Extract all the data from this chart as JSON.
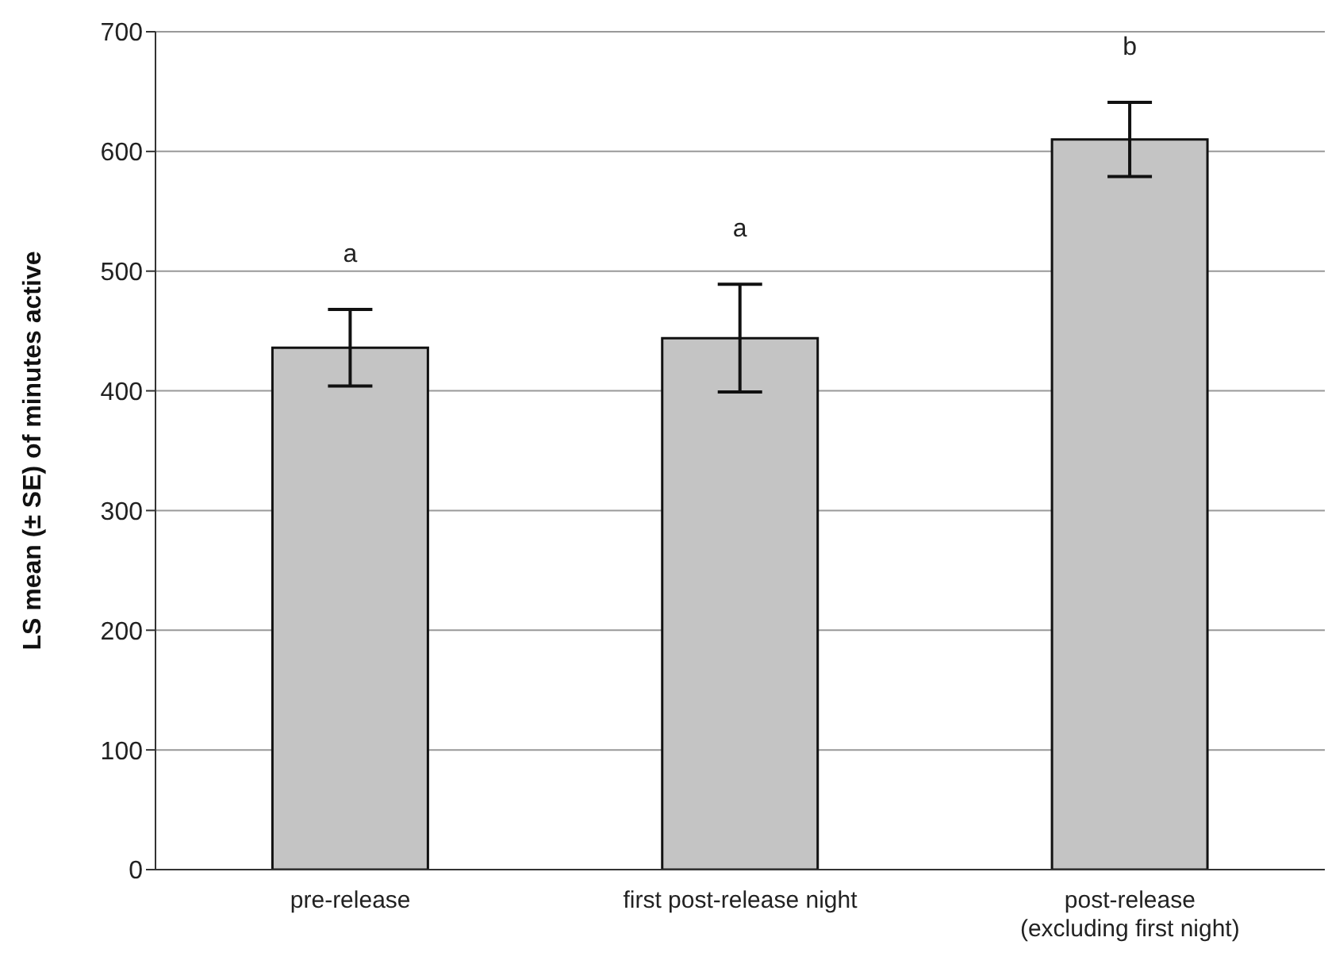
{
  "chart_data": {
    "type": "bar",
    "ylabel": "LS mean (± SE) of minutes active",
    "categories": [
      "pre-release",
      "first post-release night",
      "post-release\n(excluding first night)"
    ],
    "values": [
      436,
      444,
      610
    ],
    "errors": [
      32,
      45,
      31
    ],
    "color": "#c4c4c4",
    "ylim": [
      0,
      700
    ],
    "yticks": [
      0,
      100,
      200,
      300,
      400,
      500,
      600,
      700
    ],
    "grid": "y",
    "annotations": [
      "a",
      "a",
      "b"
    ]
  }
}
